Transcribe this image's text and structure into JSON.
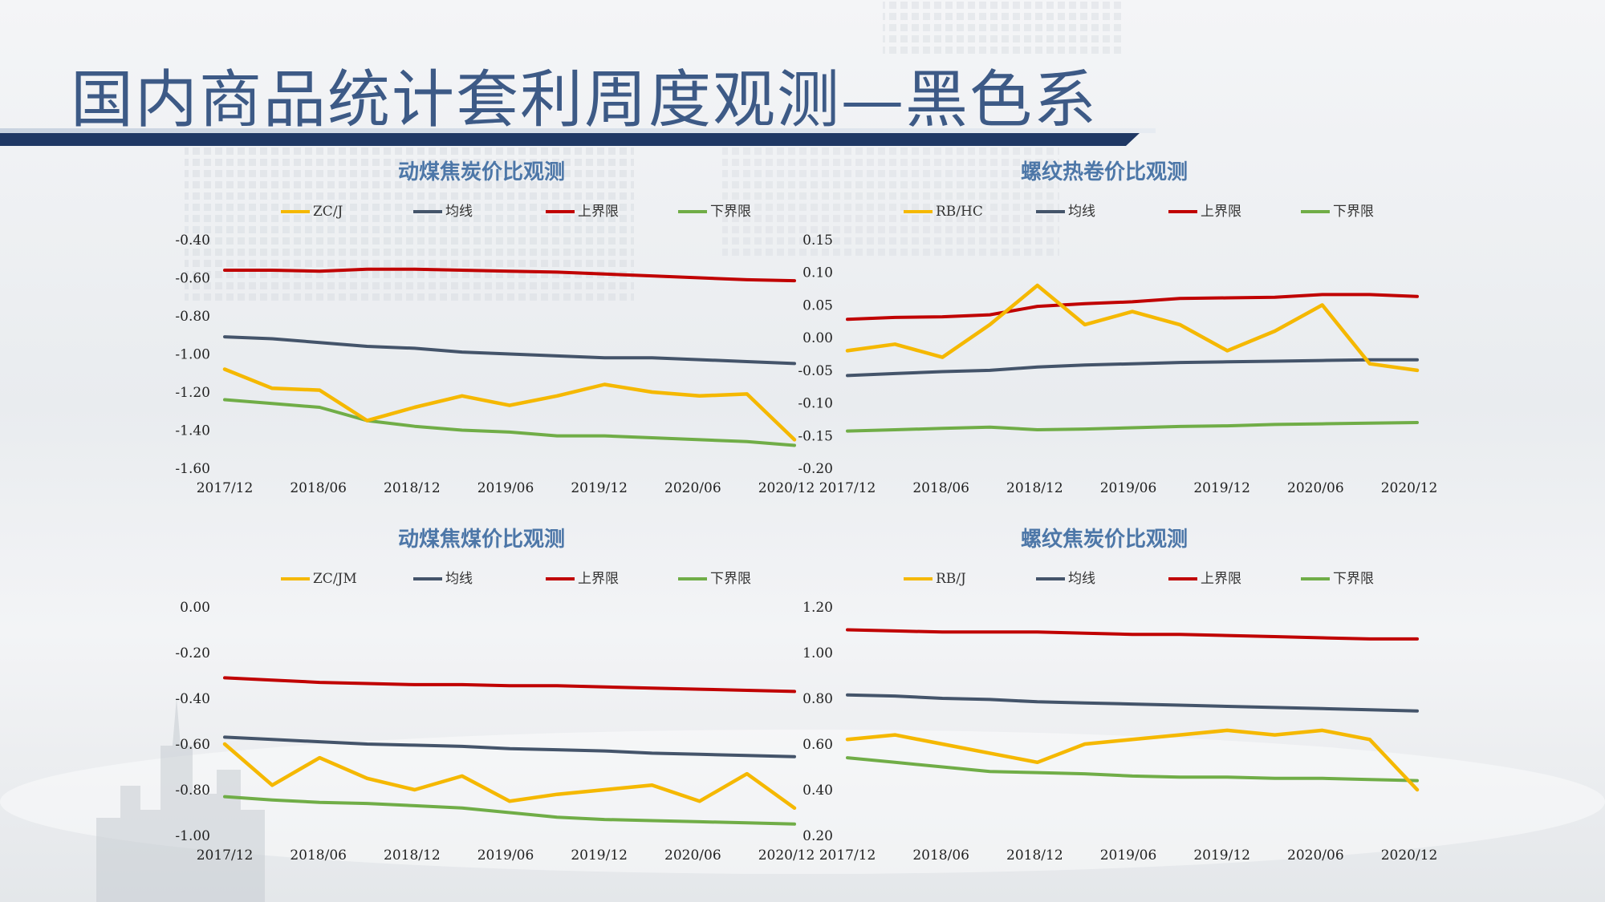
{
  "page": {
    "title": "国内商品统计套利周度观测—黑色系"
  },
  "colors": {
    "ratio": "#f5b800",
    "mean": "#44546a",
    "upper": "#c00000",
    "lower": "#70ad47",
    "panel_title": "#4d77a8",
    "page_title": "#3d5a86",
    "header_bar": "#1f3864"
  },
  "chart_data": [
    {
      "type": "line",
      "title": "动煤焦炭价比观测",
      "xlabel": "",
      "ylabel": "",
      "x_ticks": [
        "2017/12",
        "2018/06",
        "2018/12",
        "2019/06",
        "2019/12",
        "2020/06",
        "2020/12"
      ],
      "y_ticks": [
        "-0.40",
        "-0.60",
        "-0.80",
        "-1.00",
        "-1.20",
        "-1.40",
        "-1.60"
      ],
      "ylim": [
        -1.6,
        -0.4
      ],
      "legend_position": "top",
      "x": [
        "2017/12",
        "2018/03",
        "2018/06",
        "2018/09",
        "2018/12",
        "2019/03",
        "2019/06",
        "2019/09",
        "2019/12",
        "2020/03",
        "2020/06",
        "2020/09",
        "2020/12"
      ],
      "series": [
        {
          "name": "ZC/J",
          "values": [
            -1.08,
            -1.18,
            -1.19,
            -1.35,
            -1.28,
            -1.22,
            -1.27,
            -1.22,
            -1.16,
            -1.2,
            -1.22,
            -1.21,
            -1.45
          ]
        },
        {
          "name": "均线",
          "values": [
            -0.91,
            -0.92,
            -0.94,
            -0.96,
            -0.97,
            -0.99,
            -1.0,
            -1.01,
            -1.02,
            -1.02,
            -1.03,
            -1.04,
            -1.05
          ]
        },
        {
          "name": "上界限",
          "values": [
            -0.56,
            -0.56,
            -0.565,
            -0.555,
            -0.555,
            -0.56,
            -0.565,
            -0.57,
            -0.58,
            -0.59,
            -0.6,
            -0.61,
            -0.615
          ]
        },
        {
          "name": "下界限",
          "values": [
            -1.24,
            -1.26,
            -1.28,
            -1.35,
            -1.38,
            -1.4,
            -1.41,
            -1.43,
            -1.43,
            -1.44,
            -1.45,
            -1.46,
            -1.48
          ]
        }
      ]
    },
    {
      "type": "line",
      "title": "螺纹热卷价比观测",
      "xlabel": "",
      "ylabel": "",
      "x_ticks": [
        "2017/12",
        "2018/06",
        "2018/12",
        "2019/06",
        "2019/12",
        "2020/06",
        "2020/12"
      ],
      "y_ticks": [
        "0.15",
        "0.10",
        "0.05",
        "0.00",
        "-0.05",
        "-0.10",
        "-0.15",
        "-0.20"
      ],
      "ylim": [
        -0.2,
        0.15
      ],
      "legend_position": "top",
      "x": [
        "2017/12",
        "2018/03",
        "2018/06",
        "2018/09",
        "2018/12",
        "2019/03",
        "2019/06",
        "2019/09",
        "2019/12",
        "2020/03",
        "2020/06",
        "2020/09",
        "2020/12"
      ],
      "series": [
        {
          "name": "RB/HC",
          "values": [
            -0.02,
            -0.01,
            -0.03,
            0.02,
            0.08,
            0.02,
            0.04,
            0.02,
            -0.02,
            0.01,
            0.05,
            -0.04,
            -0.05
          ]
        },
        {
          "name": "均线",
          "values": [
            -0.058,
            -0.055,
            -0.052,
            -0.05,
            -0.045,
            -0.042,
            -0.04,
            -0.038,
            -0.037,
            -0.036,
            -0.035,
            -0.034,
            -0.034
          ]
        },
        {
          "name": "上界限",
          "values": [
            0.028,
            0.031,
            0.032,
            0.035,
            0.048,
            0.052,
            0.055,
            0.06,
            0.061,
            0.062,
            0.066,
            0.066,
            0.063
          ]
        },
        {
          "name": "下界限",
          "values": [
            -0.143,
            -0.141,
            -0.139,
            -0.137,
            -0.141,
            -0.14,
            -0.138,
            -0.136,
            -0.135,
            -0.133,
            -0.132,
            -0.131,
            -0.13
          ]
        }
      ]
    },
    {
      "type": "line",
      "title": "动煤焦煤价比观测",
      "xlabel": "",
      "ylabel": "",
      "x_ticks": [
        "2017/12",
        "2018/06",
        "2018/12",
        "2019/06",
        "2019/12",
        "2020/06",
        "2020/12"
      ],
      "y_ticks": [
        "0.00",
        "-0.20",
        "-0.40",
        "-0.60",
        "-0.80",
        "-1.00"
      ],
      "ylim": [
        -1.0,
        0.0
      ],
      "legend_position": "top",
      "x": [
        "2017/12",
        "2018/03",
        "2018/06",
        "2018/09",
        "2018/12",
        "2019/03",
        "2019/06",
        "2019/09",
        "2019/12",
        "2020/03",
        "2020/06",
        "2020/09",
        "2020/12"
      ],
      "series": [
        {
          "name": "ZC/JM",
          "values": [
            -0.6,
            -0.78,
            -0.66,
            -0.75,
            -0.8,
            -0.74,
            -0.85,
            -0.82,
            -0.8,
            -0.78,
            -0.85,
            -0.73,
            -0.88
          ]
        },
        {
          "name": "均线",
          "values": [
            -0.57,
            -0.58,
            -0.59,
            -0.6,
            -0.605,
            -0.61,
            -0.62,
            -0.625,
            -0.63,
            -0.64,
            -0.645,
            -0.65,
            -0.655
          ]
        },
        {
          "name": "上界限",
          "values": [
            -0.31,
            -0.32,
            -0.33,
            -0.335,
            -0.34,
            -0.34,
            -0.345,
            -0.345,
            -0.35,
            -0.355,
            -0.36,
            -0.365,
            -0.37
          ]
        },
        {
          "name": "下界限",
          "values": [
            -0.83,
            -0.845,
            -0.855,
            -0.86,
            -0.87,
            -0.88,
            -0.9,
            -0.92,
            -0.93,
            -0.935,
            -0.94,
            -0.945,
            -0.95
          ]
        }
      ]
    },
    {
      "type": "line",
      "title": "螺纹焦炭价比观测",
      "xlabel": "",
      "ylabel": "",
      "x_ticks": [
        "2017/12",
        "2018/06",
        "2018/12",
        "2019/06",
        "2019/12",
        "2020/06",
        "2020/12"
      ],
      "y_ticks": [
        "1.20",
        "1.00",
        "0.80",
        "0.60",
        "0.40",
        "0.20"
      ],
      "ylim": [
        0.2,
        1.2
      ],
      "legend_position": "top",
      "x": [
        "2017/12",
        "2018/03",
        "2018/06",
        "2018/09",
        "2018/12",
        "2019/03",
        "2019/06",
        "2019/09",
        "2019/12",
        "2020/03",
        "2020/06",
        "2020/09",
        "2020/12"
      ],
      "series": [
        {
          "name": "RB/J",
          "values": [
            0.62,
            0.64,
            0.6,
            0.56,
            0.52,
            0.6,
            0.62,
            0.64,
            0.66,
            0.64,
            0.66,
            0.62,
            0.4
          ]
        },
        {
          "name": "均线",
          "values": [
            0.815,
            0.81,
            0.8,
            0.795,
            0.785,
            0.78,
            0.775,
            0.77,
            0.765,
            0.76,
            0.755,
            0.75,
            0.745
          ]
        },
        {
          "name": "上界限",
          "values": [
            1.1,
            1.095,
            1.09,
            1.09,
            1.09,
            1.085,
            1.08,
            1.08,
            1.075,
            1.07,
            1.065,
            1.06,
            1.06
          ]
        },
        {
          "name": "下界限",
          "values": [
            0.54,
            0.52,
            0.5,
            0.48,
            0.475,
            0.47,
            0.46,
            0.455,
            0.455,
            0.45,
            0.45,
            0.445,
            0.44
          ]
        }
      ]
    }
  ]
}
